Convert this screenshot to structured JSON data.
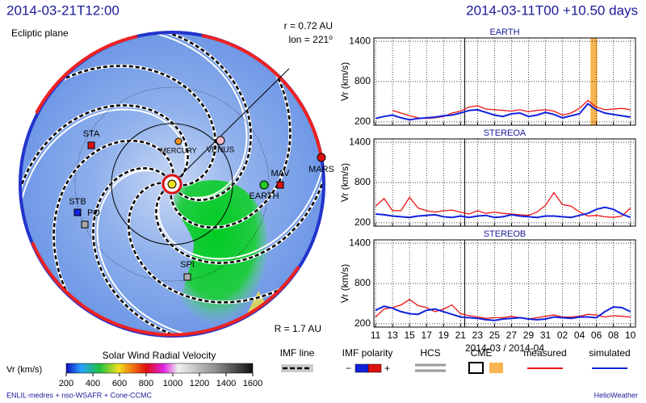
{
  "header": {
    "left_title": "2014-03-21T12:00",
    "right_title": "2014-03-11T00 +10.50 days"
  },
  "polar": {
    "plane": "Ecliptic plane",
    "radius_info": "r = 0.72 AU",
    "lon_info": "lon = 221⁰",
    "outer_radius": "R = 1.7 AU",
    "bodies": [
      "MERCURY",
      "VENUS",
      "EARTH",
      "MARS",
      "STA",
      "STB",
      "PO",
      "SPI",
      "MAV"
    ]
  },
  "chart_data": [
    {
      "type": "line",
      "title": "EARTH",
      "ylabel": "Vr (km/s)",
      "ylim": [
        150,
        1450
      ],
      "yticks": [
        200,
        800,
        1400
      ],
      "xlim": [
        -0.2,
        30.6
      ],
      "now": 10.5,
      "cme_span": [
        25.3,
        26.1
      ],
      "x": [
        0,
        1,
        2,
        3,
        4,
        5,
        6,
        7,
        8,
        9,
        10,
        11,
        12,
        13,
        14,
        15,
        16,
        17,
        18,
        19,
        20,
        21,
        22,
        23,
        24,
        25,
        26,
        27,
        28,
        29,
        30
      ],
      "series": [
        {
          "name": "measured",
          "color": "#ee1111",
          "values": [
            null,
            null,
            370,
            330,
            290,
            260,
            250,
            260,
            280,
            330,
            360,
            420,
            440,
            390,
            380,
            370,
            360,
            380,
            350,
            370,
            380,
            360,
            300,
            330,
            400,
            520,
            420,
            380,
            390,
            400,
            380
          ]
        },
        {
          "name": "simulated",
          "color": "#1122dd",
          "values": [
            250,
            280,
            300,
            260,
            230,
            250,
            260,
            270,
            290,
            300,
            330,
            370,
            380,
            340,
            300,
            280,
            320,
            330,
            280,
            300,
            340,
            310,
            260,
            290,
            320,
            470,
            380,
            330,
            310,
            290,
            270
          ]
        }
      ]
    },
    {
      "type": "line",
      "title": "STEREOA",
      "ylabel": "Vr (km/s)",
      "ylim": [
        150,
        1450
      ],
      "yticks": [
        200,
        800,
        1400
      ],
      "xlim": [
        -0.2,
        30.6
      ],
      "now": 10.5,
      "x": [
        0,
        1,
        2,
        3,
        4,
        5,
        6,
        7,
        8,
        9,
        10,
        11,
        12,
        13,
        14,
        15,
        16,
        17,
        18,
        19,
        20,
        21,
        22,
        23,
        24,
        25,
        26,
        27,
        28,
        29,
        30
      ],
      "series": [
        {
          "name": "measured",
          "color": "#ee1111",
          "values": [
            450,
            560,
            380,
            380,
            580,
            420,
            380,
            360,
            380,
            390,
            360,
            330,
            380,
            340,
            360,
            340,
            330,
            320,
            310,
            360,
            460,
            650,
            470,
            450,
            360,
            300,
            310,
            290,
            280,
            300,
            420
          ]
        },
        {
          "name": "simulated",
          "color": "#1122dd",
          "values": [
            330,
            320,
            300,
            290,
            280,
            300,
            310,
            320,
            290,
            280,
            300,
            280,
            300,
            310,
            280,
            290,
            320,
            300,
            290,
            280,
            300,
            300,
            290,
            280,
            310,
            340,
            400,
            430,
            400,
            330,
            280
          ]
        }
      ]
    },
    {
      "type": "line",
      "title": "STEREOB",
      "ylabel": "Vr (km/s)",
      "ylim": [
        150,
        1450
      ],
      "yticks": [
        200,
        800,
        1400
      ],
      "xlim": [
        -0.2,
        30.6
      ],
      "now": 10.5,
      "xlabel": "2014-03 / 2014-04",
      "xticks": [
        {
          "value": 0,
          "label": "11"
        },
        {
          "value": 2,
          "label": "13"
        },
        {
          "value": 4,
          "label": "15"
        },
        {
          "value": 6,
          "label": "17"
        },
        {
          "value": 8,
          "label": "19"
        },
        {
          "value": 10,
          "label": "21"
        },
        {
          "value": 12,
          "label": "23"
        },
        {
          "value": 14,
          "label": "25"
        },
        {
          "value": 16,
          "label": "27"
        },
        {
          "value": 18,
          "label": "29"
        },
        {
          "value": 20,
          "label": "31"
        },
        {
          "value": 22,
          "label": "02"
        },
        {
          "value": 24,
          "label": "04"
        },
        {
          "value": 26,
          "label": "06"
        },
        {
          "value": 28,
          "label": "08"
        },
        {
          "value": 30,
          "label": "10"
        }
      ],
      "x": [
        0,
        1,
        2,
        3,
        4,
        5,
        6,
        7,
        8,
        9,
        10,
        11,
        12,
        13,
        14,
        15,
        16,
        17,
        18,
        19,
        20,
        21,
        22,
        23,
        24,
        25,
        26,
        27,
        28,
        29,
        30
      ],
      "series": [
        {
          "name": "measured",
          "color": "#ee1111",
          "values": [
            300,
            420,
            440,
            480,
            560,
            470,
            440,
            380,
            420,
            480,
            350,
            320,
            300,
            280,
            290,
            290,
            310,
            290,
            270,
            290,
            310,
            330,
            300,
            300,
            310,
            340,
            330,
            300,
            320,
            310,
            300
          ]
        },
        {
          "name": "simulated",
          "color": "#1122dd",
          "values": [
            400,
            460,
            430,
            380,
            350,
            340,
            400,
            420,
            380,
            340,
            300,
            290,
            280,
            260,
            250,
            270,
            280,
            290,
            270,
            260,
            270,
            300,
            290,
            280,
            300,
            300,
            290,
            380,
            450,
            440,
            380
          ]
        }
      ]
    }
  ],
  "colorbar": {
    "title": "Solar Wind Radial Velocity",
    "label": "Vr (km/s)",
    "ticks": [
      200,
      400,
      600,
      800,
      1000,
      1200,
      1400,
      1600
    ]
  },
  "legend": {
    "imf_line": "IMF line",
    "imf_polarity": "IMF polarity",
    "minus": "−",
    "plus": "+",
    "hcs": "HCS",
    "cme": "CME"
  },
  "footer": {
    "left": "ENLIL-medres + nso-WSAFR + Cone-CCMC",
    "right": "HelioWeather"
  }
}
